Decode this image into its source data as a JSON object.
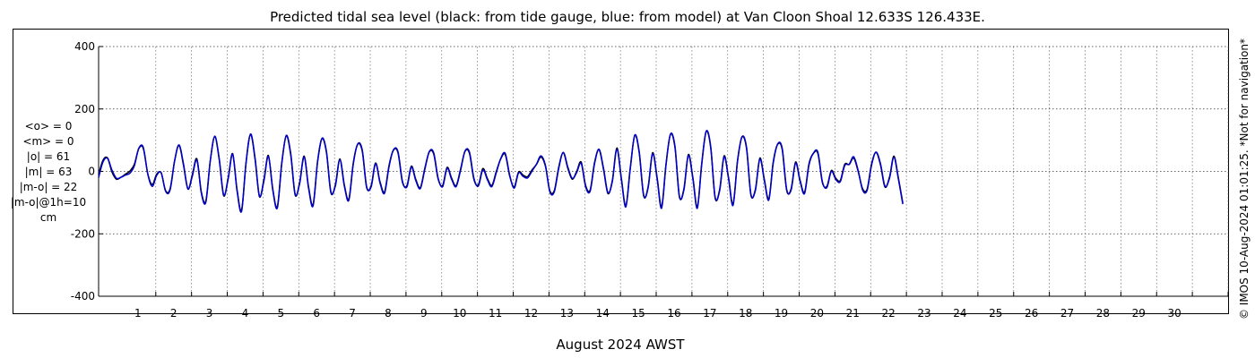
{
  "chart_data": {
    "type": "line",
    "title": "Predicted tidal sea level (black: from tide gauge, blue: from model) at Van Cloon Shoal 12.633S 126.433E.",
    "xlabel": "August 2024 AWST",
    "ylabel": "",
    "ylim": [
      -400,
      400
    ],
    "yticks": [
      -400,
      -200,
      0,
      200,
      400
    ],
    "ytick_labels": [
      "-400",
      "-200",
      "0",
      "200",
      "400"
    ],
    "x_day_labels": [
      "1",
      "2",
      "3",
      "4",
      "5",
      "6",
      "7",
      "8",
      "9",
      "10",
      "11",
      "12",
      "13",
      "14",
      "15",
      "16",
      "17",
      "18",
      "19",
      "20",
      "21",
      "22",
      "23",
      "24",
      "25",
      "26",
      "27",
      "28",
      "29",
      "30"
    ],
    "xlim_days": [
      -0.7,
      31.0
    ],
    "grid": true,
    "units": "cm",
    "stats": [
      "<o> = 0",
      "<m> = 0",
      "|o| = 61",
      "|m| = 63",
      "|m-o| = 22",
      "|m-o|@1h=10",
      "cm"
    ],
    "credit": "© IMOS 10-Aug-2024 01:01:25. *Not for navigation*",
    "series": [
      {
        "color": "#000000",
        "step_hours": 3,
        "x_start_day": -0.6,
        "values": [
          -10,
          36,
          43,
          -2,
          -25,
          -19,
          -9,
          1,
          23,
          73,
          74,
          -7,
          -42,
          -9,
          -5,
          -62,
          -56,
          33,
          83,
          20,
          -57,
          -9,
          40,
          -66,
          -95,
          35,
          111,
          37,
          -78,
          -21,
          57,
          -60,
          -124,
          29,
          118,
          41,
          -81,
          -26,
          51,
          -58,
          -113,
          27,
          114,
          53,
          -76,
          -35,
          49,
          -50,
          -107,
          31,
          105,
          60,
          -69,
          -42,
          40,
          -43,
          -89,
          27,
          87,
          65,
          -52,
          -46,
          27,
          -34,
          -66,
          19,
          68,
          60,
          -34,
          -46,
          17,
          -26,
          -52,
          9,
          62,
          56,
          -25,
          -45,
          13,
          -21,
          -46,
          6,
          64,
          58,
          -26,
          -43,
          9,
          -22,
          -45,
          -1,
          40,
          54,
          -14,
          -50,
          -2,
          -12,
          -17,
          5,
          22,
          46,
          17,
          -62,
          -61,
          15,
          60,
          11,
          -25,
          0,
          30,
          -45,
          -60,
          28,
          70,
          7,
          -71,
          -27,
          75,
          -21,
          -110,
          12,
          115,
          59,
          -79,
          -49,
          60,
          -19,
          -113,
          24,
          119,
          76,
          -82,
          -56,
          54,
          -19,
          -114,
          28,
          128,
          76,
          -86,
          -58,
          50,
          -21,
          -105,
          34,
          110,
          75,
          -76,
          -57,
          43,
          -25,
          -88,
          31,
          87,
          70,
          -61,
          -56,
          30,
          -28,
          -67,
          25,
          58,
          57,
          -36,
          -48,
          3,
          -22,
          -29,
          23,
          22,
          43,
          0,
          -56,
          -57,
          24,
          61,
          21,
          -50,
          -19,
          49,
          -21,
          -101
        ]
      },
      {
        "color": "#0000cc",
        "step_hours": 3,
        "x_start_day": -0.6,
        "values": [
          -20,
          31,
          42,
          4,
          -22,
          -19,
          -12,
          -6,
          18,
          74,
          77,
          -8,
          -48,
          -13,
          -4,
          -64,
          -60,
          32,
          85,
          24,
          -56,
          -14,
          36,
          -70,
          -99,
          34,
          113,
          40,
          -75,
          -25,
          55,
          -64,
          -128,
          27,
          120,
          46,
          -79,
          -31,
          48,
          -62,
          -117,
          24,
          115,
          58,
          -73,
          -39,
          46,
          -54,
          -111,
          28,
          106,
          64,
          -66,
          -46,
          37,
          -47,
          -93,
          23,
          88,
          69,
          -49,
          -50,
          24,
          -38,
          -70,
          15,
          69,
          64,
          -31,
          -50,
          14,
          -30,
          -55,
          5,
          63,
          60,
          -22,
          -49,
          10,
          -25,
          -49,
          2,
          65,
          62,
          -22,
          -47,
          5,
          -26,
          -49,
          -5,
          41,
          58,
          -11,
          -54,
          -5,
          -16,
          -21,
          1,
          23,
          50,
          20,
          -66,
          -65,
          11,
          61,
          15,
          -22,
          -4,
          26,
          -49,
          -64,
          24,
          71,
          11,
          -68,
          -31,
          71,
          -25,
          -114,
          8,
          116,
          63,
          -76,
          -53,
          57,
          -23,
          -118,
          21,
          120,
          80,
          -79,
          -60,
          51,
          -23,
          -118,
          24,
          129,
          80,
          -83,
          -62,
          47,
          -25,
          -109,
          31,
          111,
          79,
          -73,
          -61,
          40,
          -29,
          -92,
          27,
          88,
          74,
          -58,
          -60,
          27,
          -32,
          -71,
          21,
          59,
          61,
          -33,
          -52,
          0,
          -26,
          -33,
          19,
          23,
          47,
          3,
          -60,
          -61,
          20,
          62,
          25,
          -47,
          -23,
          45,
          -25,
          -105
        ]
      }
    ]
  }
}
